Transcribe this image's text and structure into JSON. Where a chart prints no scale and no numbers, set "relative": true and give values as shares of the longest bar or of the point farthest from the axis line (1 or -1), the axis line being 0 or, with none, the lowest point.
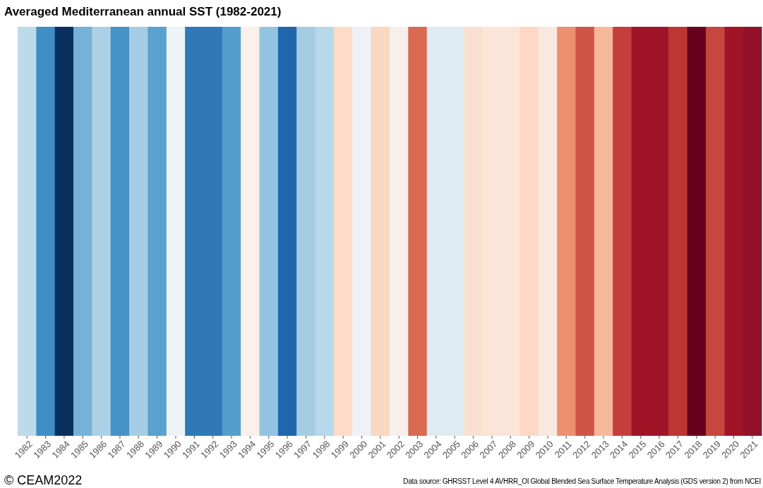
{
  "chart_data": {
    "type": "bar",
    "title": "Averaged Mediterranean annual SST (1982-2021)",
    "relative": true,
    "categories": [
      "1982",
      "1983",
      "1984",
      "1985",
      "1986",
      "1987",
      "1988",
      "1989",
      "1990",
      "1991",
      "1992",
      "1993",
      "1994",
      "1995",
      "1996",
      "1997",
      "1998",
      "1999",
      "2000",
      "2001",
      "2002",
      "2003",
      "2004",
      "2005",
      "2006",
      "2007",
      "2008",
      "2009",
      "2010",
      "2011",
      "2012",
      "2013",
      "2014",
      "2015",
      "2016",
      "2017",
      "2018",
      "2019",
      "2020",
      "2021"
    ],
    "values": [
      1,
      1,
      1,
      1,
      1,
      1,
      1,
      1,
      1,
      1,
      1,
      1,
      1,
      1,
      1,
      1,
      1,
      1,
      1,
      1,
      1,
      1,
      1,
      1,
      1,
      1,
      1,
      1,
      1,
      1,
      1,
      1,
      1,
      1,
      1,
      1,
      1,
      1,
      1,
      1
    ],
    "colors": [
      "#bcdbe9",
      "#3f8fc4",
      "#08305e",
      "#77b2d6",
      "#aad1e6",
      "#4592c7",
      "#a4cde4",
      "#5aa1cf",
      "#eef3f6",
      "#2f79b7",
      "#2f79b7",
      "#549ecd",
      "#fbf0ea",
      "#92c4df",
      "#2166ac",
      "#a4cde4",
      "#b7d8ea",
      "#fcdcc8",
      "#eef2f6",
      "#fad7c2",
      "#f6efec",
      "#d9694f",
      "#deebf2",
      "#deebf2",
      "#fbe0d1",
      "#fbe5d8",
      "#fbe5d8",
      "#fbd9c6",
      "#f9e8df",
      "#eb9070",
      "#cf5547",
      "#f6b899",
      "#c53e3b",
      "#a11428",
      "#a11428",
      "#bd3631",
      "#67001f",
      "#c5473d",
      "#a11428",
      "#921129"
    ],
    "annotations": [
      "© CEAM2022",
      "Data source: GHRSST Level 4 AVHRR_OI Global Blended Sea Surface Temperature Analysis (GDS version 2) from NCEI"
    ]
  }
}
